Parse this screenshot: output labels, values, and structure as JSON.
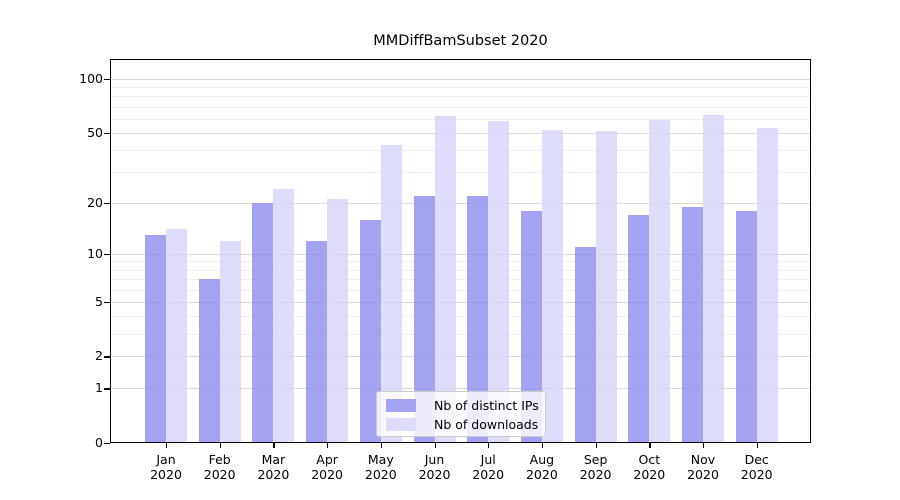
{
  "title": "MMDiffBamSubset 2020",
  "legend": {
    "items": [
      {
        "label": "Nb of distinct IPs",
        "color": "#a3a3f1"
      },
      {
        "label": "Nb of downloads",
        "color": "#dcdcf9"
      }
    ]
  },
  "chart_data": {
    "type": "bar",
    "title": "MMDiffBamSubset 2020",
    "categories": [
      "Jan 2020",
      "Feb 2020",
      "Mar 2020",
      "Apr 2020",
      "May 2020",
      "Jun 2020",
      "Jul 2020",
      "Aug 2020",
      "Sep 2020",
      "Oct 2020",
      "Nov 2020",
      "Dec 2020"
    ],
    "series": [
      {
        "name": "Nb of distinct IPs",
        "fill": "rgba(140,140,238,0.8)",
        "swatch": "#a3a3f1",
        "values": [
          13,
          7,
          20,
          12,
          16,
          22,
          22,
          18,
          11,
          17,
          19,
          18
        ]
      },
      {
        "name": "Nb of downloads",
        "fill": "rgba(212,212,249,0.8)",
        "swatch": "#dcdcf9",
        "values": [
          14,
          12,
          24,
          21,
          43,
          62,
          58,
          52,
          51,
          59,
          63,
          53
        ]
      }
    ],
    "xlabel": "",
    "ylabel": "",
    "yscale": "log(value+1)",
    "yticks": [
      0,
      1,
      2,
      5,
      10,
      20,
      50,
      100
    ],
    "minor_yticks": [
      3,
      4,
      6,
      7,
      8,
      9,
      30,
      40,
      60,
      70,
      80,
      90
    ],
    "ylim": [
      0,
      130
    ],
    "grid": "horizontal",
    "legend_position": "lower center",
    "colors": {
      "axis": "#000000",
      "major_grid": "#d9d9d9",
      "minor_grid": "#efefef",
      "background": "#ffffff"
    }
  }
}
